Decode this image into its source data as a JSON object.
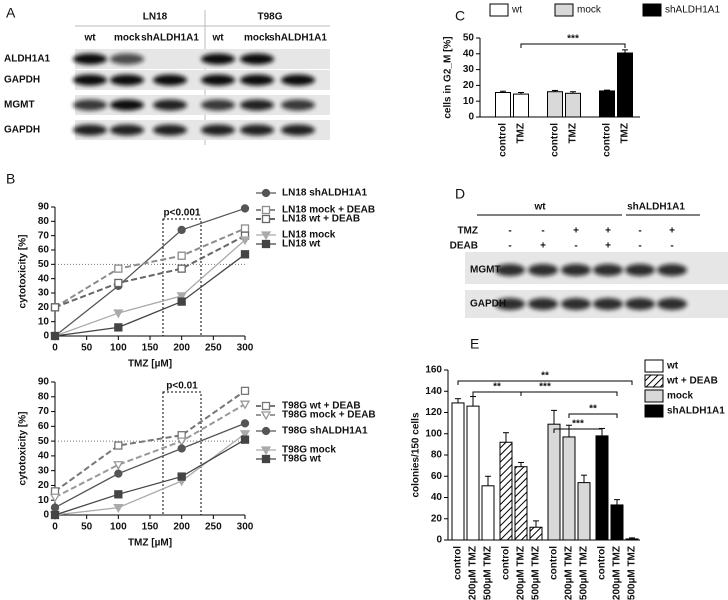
{
  "panel_labels": [
    "A",
    "B",
    "C",
    "D",
    "E"
  ],
  "blot_a": {
    "groups": [
      "LN18",
      "T98G"
    ],
    "lanes": [
      "wt",
      "mock",
      "shALDH1A1",
      "wt",
      "mock",
      "shALDH1A1"
    ],
    "rows": [
      "ALDH1A1",
      "GAPDH",
      "MGMT",
      "GAPDH"
    ]
  },
  "blot_d": {
    "groups": [
      "wt",
      "shALDH1A1"
    ],
    "row_labels": [
      "TMZ",
      "DEAB"
    ],
    "signs": [
      [
        "-",
        "-",
        "+",
        "+",
        "-",
        "+"
      ],
      [
        "-",
        "+",
        "-",
        "+",
        "-",
        "-"
      ]
    ],
    "rows": [
      "MGMT",
      "GAPDH"
    ]
  },
  "chart_data": [
    {
      "type": "line",
      "x_label": "TMZ [µM]",
      "y_label": "cytotoxicity [%]",
      "annotation": "p<0.001",
      "x": [
        0,
        100,
        200,
        300
      ],
      "xlim": [
        0,
        300
      ],
      "xticks": [
        0,
        50,
        100,
        150,
        200,
        250,
        300
      ],
      "ylim": [
        0,
        90
      ],
      "yticks": [
        0,
        10,
        20,
        30,
        40,
        50,
        60,
        70,
        80,
        90
      ],
      "series": [
        {
          "name": "LN18 shALDH1A1",
          "color": "#555555",
          "marker": "circle",
          "filled": true,
          "dashed": false,
          "values": [
            0,
            35,
            74,
            89
          ]
        },
        {
          "name": "LN18 mock + DEAB",
          "color": "#8c8c8c",
          "marker": "square",
          "filled": false,
          "dashed": true,
          "values": [
            20,
            47,
            56,
            75
          ]
        },
        {
          "name": "LN18 wt + DEAB",
          "color": "#666666",
          "marker": "square",
          "filled": false,
          "dashed": true,
          "values": [
            20,
            37,
            47,
            70
          ]
        },
        {
          "name": "LN18 mock",
          "color": "#aaaaaa",
          "marker": "triangle",
          "filled": true,
          "dashed": false,
          "values": [
            0,
            16,
            28,
            67
          ]
        },
        {
          "name": "LN18 wt",
          "color": "#444444",
          "marker": "square",
          "filled": true,
          "dashed": false,
          "values": [
            0,
            6,
            24,
            57
          ]
        }
      ]
    },
    {
      "type": "line",
      "x_label": "TMZ [µM]",
      "y_label": "cytotoxicity [%]",
      "annotation": "p<0.01",
      "x": [
        0,
        100,
        200,
        300
      ],
      "xlim": [
        0,
        300
      ],
      "xticks": [
        0,
        50,
        100,
        150,
        200,
        250,
        300
      ],
      "ylim": [
        0,
        90
      ],
      "yticks": [
        0,
        10,
        20,
        30,
        40,
        50,
        60,
        70,
        80,
        90
      ],
      "series": [
        {
          "name": "T98G wt + DEAB",
          "color": "#777777",
          "marker": "square",
          "filled": false,
          "dashed": true,
          "values": [
            16,
            47,
            54,
            84
          ]
        },
        {
          "name": "T98G mock + DEAB",
          "color": "#999999",
          "marker": "triangle",
          "filled": false,
          "dashed": true,
          "values": [
            12,
            34,
            50,
            75
          ]
        },
        {
          "name": "T98G shALDH1A1",
          "color": "#555555",
          "marker": "circle",
          "filled": true,
          "dashed": false,
          "values": [
            5,
            28,
            45,
            62
          ]
        },
        {
          "name": "T98G mock",
          "color": "#aaaaaa",
          "marker": "triangle",
          "filled": true,
          "dashed": false,
          "values": [
            0,
            5,
            23,
            55
          ]
        },
        {
          "name": "T98G wt",
          "color": "#444444",
          "marker": "square",
          "filled": true,
          "dashed": false,
          "values": [
            0,
            14,
            26,
            51
          ]
        }
      ]
    },
    {
      "type": "bar",
      "y_label": "cells in G2_M [%]",
      "annotations": [
        "***"
      ],
      "legend": "top",
      "categories": [
        "control",
        "TMZ",
        "control",
        "TMZ",
        "control",
        "TMZ"
      ],
      "ylim": [
        0,
        50
      ],
      "yticks": [
        0,
        10,
        20,
        30,
        40,
        50
      ],
      "series": [
        {
          "name": "wt",
          "color": "#ffffff",
          "hatch": false,
          "values": [
            15.5,
            14.5,
            null,
            null,
            null,
            null
          ],
          "errors": [
            0.8,
            1,
            null,
            null,
            null,
            null
          ]
        },
        {
          "name": "mock",
          "color": "#d9d9d9",
          "hatch": false,
          "values": [
            null,
            null,
            16,
            15,
            null,
            null
          ],
          "errors": [
            null,
            null,
            0.8,
            1,
            null,
            null
          ]
        },
        {
          "name": "shALDH1A1",
          "color": "#000000",
          "hatch": false,
          "values": [
            null,
            null,
            null,
            null,
            16.5,
            40.5
          ],
          "errors": [
            null,
            null,
            null,
            null,
            0.5,
            2
          ]
        }
      ]
    },
    {
      "type": "bar",
      "y_label": "colonies/150 cells",
      "annotations": [
        "**",
        "**",
        "***",
        "**",
        "***"
      ],
      "legend": "right",
      "categories": [
        "control",
        "200µM TMZ",
        "500µM TMZ",
        "control",
        "200µM TMZ",
        "500µM TMZ",
        "control",
        "200µM TMZ",
        "500µM TMZ",
        "control",
        "200µM TMZ",
        "500µM TMZ"
      ],
      "ylim": [
        0,
        160
      ],
      "yticks": [
        0,
        20,
        40,
        60,
        80,
        100,
        120,
        140,
        160
      ],
      "series": [
        {
          "name": "wt",
          "color": "#ffffff",
          "hatch": false,
          "values": [
            129,
            126,
            51,
            null,
            null,
            null,
            null,
            null,
            null,
            null,
            null,
            null
          ],
          "errors": [
            4,
            9,
            9,
            null,
            null,
            null,
            null,
            null,
            null,
            null,
            null,
            null
          ]
        },
        {
          "name": "wt + DEAB",
          "color": "#ffffff",
          "hatch": true,
          "values": [
            null,
            null,
            null,
            92,
            69,
            12,
            null,
            null,
            null,
            null,
            null,
            null
          ],
          "errors": [
            null,
            null,
            null,
            9,
            4,
            6,
            null,
            null,
            null,
            null,
            null,
            null
          ]
        },
        {
          "name": "mock",
          "color": "#d9d9d9",
          "hatch": false,
          "values": [
            null,
            null,
            null,
            null,
            null,
            null,
            109,
            97,
            54,
            null,
            null,
            null
          ],
          "errors": [
            null,
            null,
            null,
            null,
            null,
            null,
            13,
            11,
            7,
            null,
            null,
            null
          ]
        },
        {
          "name": "shALDH1A1",
          "color": "#000000",
          "hatch": false,
          "values": [
            null,
            null,
            null,
            null,
            null,
            null,
            null,
            null,
            null,
            98,
            33,
            1
          ],
          "errors": [
            null,
            null,
            null,
            null,
            null,
            null,
            null,
            null,
            null,
            7,
            5,
            1
          ]
        }
      ]
    }
  ]
}
